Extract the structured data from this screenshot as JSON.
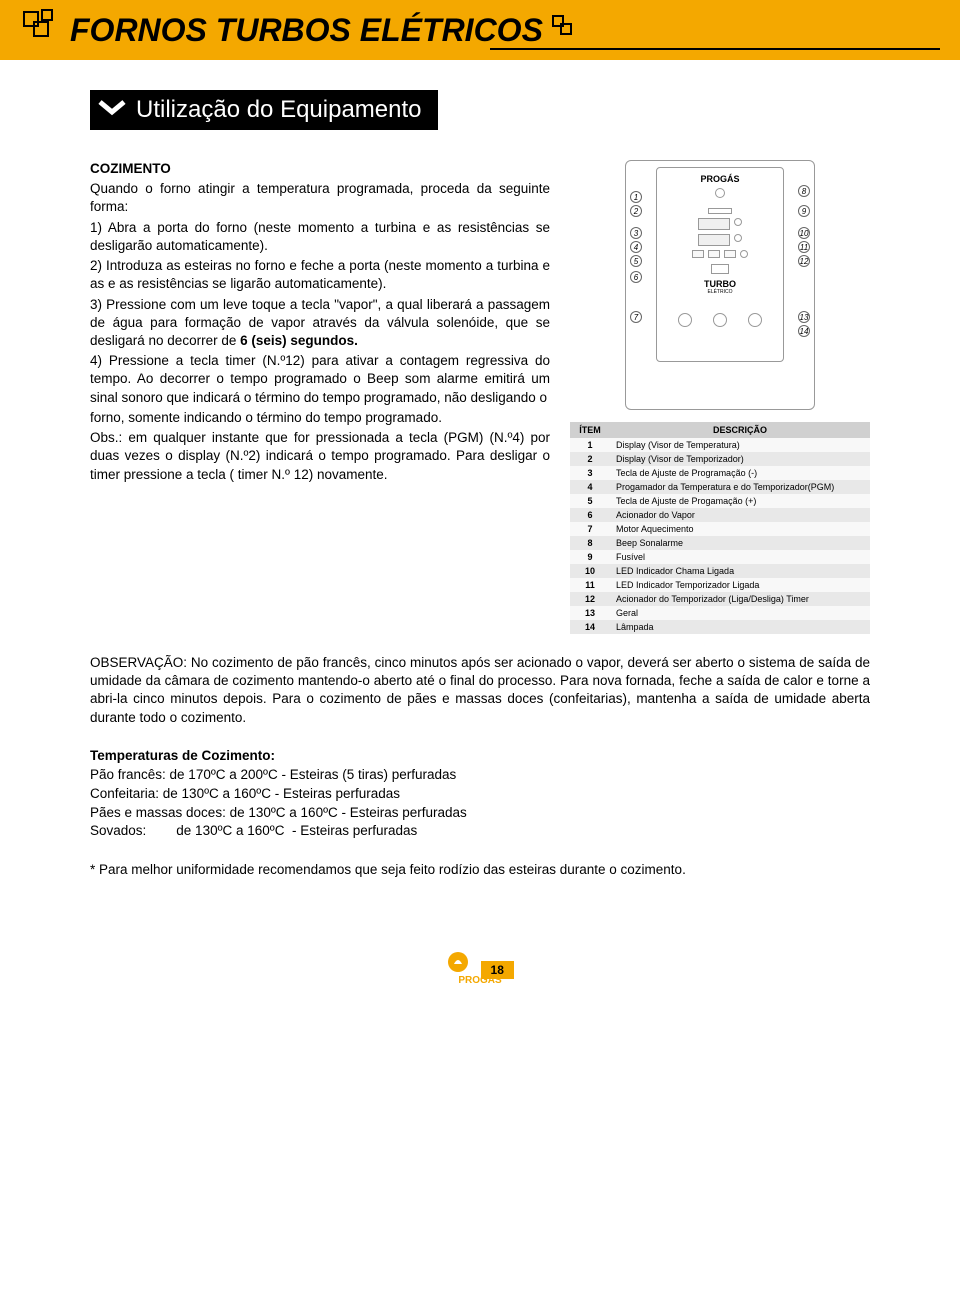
{
  "header": {
    "title": "FORNOS TURBOS ELÉTRICOS"
  },
  "subheader": {
    "text": "Utilização do Equipamento"
  },
  "cozimento": {
    "title": "COZIMENTO",
    "intro": "Quando o forno atingir a temperatura programada, proceda da seguinte forma:",
    "step1": "1) Abra a porta do forno (neste momento a turbina e as resistências se desligarão automaticamente).",
    "step2": "2) Introduza as esteiras no forno e feche a porta (neste momento a turbina e as e as resistências se ligarão automaticamente).",
    "step3a": "3) Pressione com um leve toque a tecla \"vapor\", a qual liberará a passagem de água para formação de vapor através da válvula solenóide, que se desligará no decorrer de ",
    "step3b": "6 (seis) segundos.",
    "step4": "4) Pressione a tecla timer (N.º12) para ativar a contagem regressiva do tempo. Ao decorrer o tempo programado o Beep som alarme emitirá um sinal sonoro que indicará o término do tempo programado, não desligando o",
    "step4b": "forno, somente indicando o término do tempo programado.",
    "obs": "Obs.: em qualquer instante que for pressionada a tecla (PGM) (N.º4) por duas vezes o display (N.º2) indicará o tempo programado. Para desligar o timer pressione a tecla ( timer N.º 12) novamente."
  },
  "panel": {
    "brand": "PROGÁS",
    "model": "TURBO",
    "modelSub": "ELÉTRICO",
    "callouts_left": [
      "1",
      "2",
      "3",
      "4",
      "5",
      "6",
      "7"
    ],
    "callouts_right": [
      "8",
      "9",
      "10",
      "11",
      "12",
      "13",
      "14"
    ]
  },
  "table": {
    "head_item": "ÍTEM",
    "head_desc": "DESCRIÇÃO",
    "rows": [
      {
        "n": "1",
        "d": "Display (Visor de Temperatura)"
      },
      {
        "n": "2",
        "d": "Display (Visor de Temporizador)"
      },
      {
        "n": "3",
        "d": "Tecla de Ajuste de Programação (-)"
      },
      {
        "n": "4",
        "d": "Progamador da Temperatura e do Temporizador(PGM)"
      },
      {
        "n": "5",
        "d": "Tecla de Ajuste de Progamação (+)"
      },
      {
        "n": "6",
        "d": "Acionador do Vapor"
      },
      {
        "n": "7",
        "d": "Motor Aquecimento"
      },
      {
        "n": "8",
        "d": "Beep Sonalarme"
      },
      {
        "n": "9",
        "d": "Fusível"
      },
      {
        "n": "10",
        "d": "LED Indicador Chama Ligada"
      },
      {
        "n": "11",
        "d": "LED Indicador Temporizador Ligada"
      },
      {
        "n": "12",
        "d": "Acionador do Temporizador (Liga/Desliga) Timer"
      },
      {
        "n": "13",
        "d": "Geral"
      },
      {
        "n": "14",
        "d": "Lâmpada"
      }
    ]
  },
  "observacao": "OBSERVAÇÃO: No cozimento de pão francês, cinco minutos após ser acionado o vapor, deverá ser aberto o sistema de saída de umidade da câmara de cozimento mantendo-o aberto até o final do processo. Para nova fornada, feche a saída de calor e torne a abri-la cinco minutos depois. Para o cozimento de pães e massas doces (confeitarias), mantenha a saída de umidade aberta durante todo o cozimento.",
  "temperaturas": {
    "title": "Temperaturas de Cozimento:",
    "l1": "Pão francês: de 170ºC a 200ºC  - Esteiras (5 tiras) perfuradas",
    "l2": "Confeitaria: de 130ºC a 160ºC  -  Esteiras perfuradas",
    "l3": "Pães e massas doces: de 130ºC a 160ºC  -  Esteiras perfuradas",
    "l4": "Sovados:        de 130ºC a 160ºC  - Esteiras perfuradas"
  },
  "note": "* Para melhor uniformidade recomendamos que seja feito rodízio das esteiras durante o cozimento.",
  "footer": {
    "brand": "PROGÁS",
    "page": "18"
  },
  "colors": {
    "accent": "#f4a800",
    "text": "#000000",
    "table_even": "#e8e8e8",
    "table_odd": "#f8f8f8",
    "table_head": "#d0d0d0"
  }
}
